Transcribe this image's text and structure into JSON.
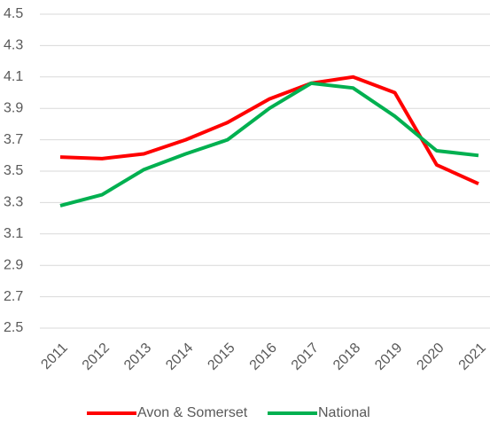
{
  "chart_data": {
    "type": "line",
    "categories": [
      "2011",
      "2012",
      "2013",
      "2014",
      "2015",
      "2016",
      "2017",
      "2018",
      "2019",
      "2020",
      "2021"
    ],
    "series": [
      {
        "name": "Avon & Somerset",
        "color": "#ff0000",
        "values": [
          3.59,
          3.58,
          3.61,
          3.7,
          3.81,
          3.96,
          4.06,
          4.1,
          4.0,
          3.54,
          3.42
        ]
      },
      {
        "name": "National",
        "color": "#00b050",
        "values": [
          3.28,
          3.35,
          3.51,
          3.61,
          3.7,
          3.9,
          4.06,
          4.03,
          3.85,
          3.63,
          3.6
        ]
      }
    ],
    "ylim": [
      2.5,
      4.5
    ],
    "yticks": [
      2.5,
      2.7,
      2.9,
      3.1,
      3.3,
      3.5,
      3.7,
      3.9,
      4.1,
      4.3,
      4.5
    ],
    "grid": true,
    "legend": "bottom"
  }
}
